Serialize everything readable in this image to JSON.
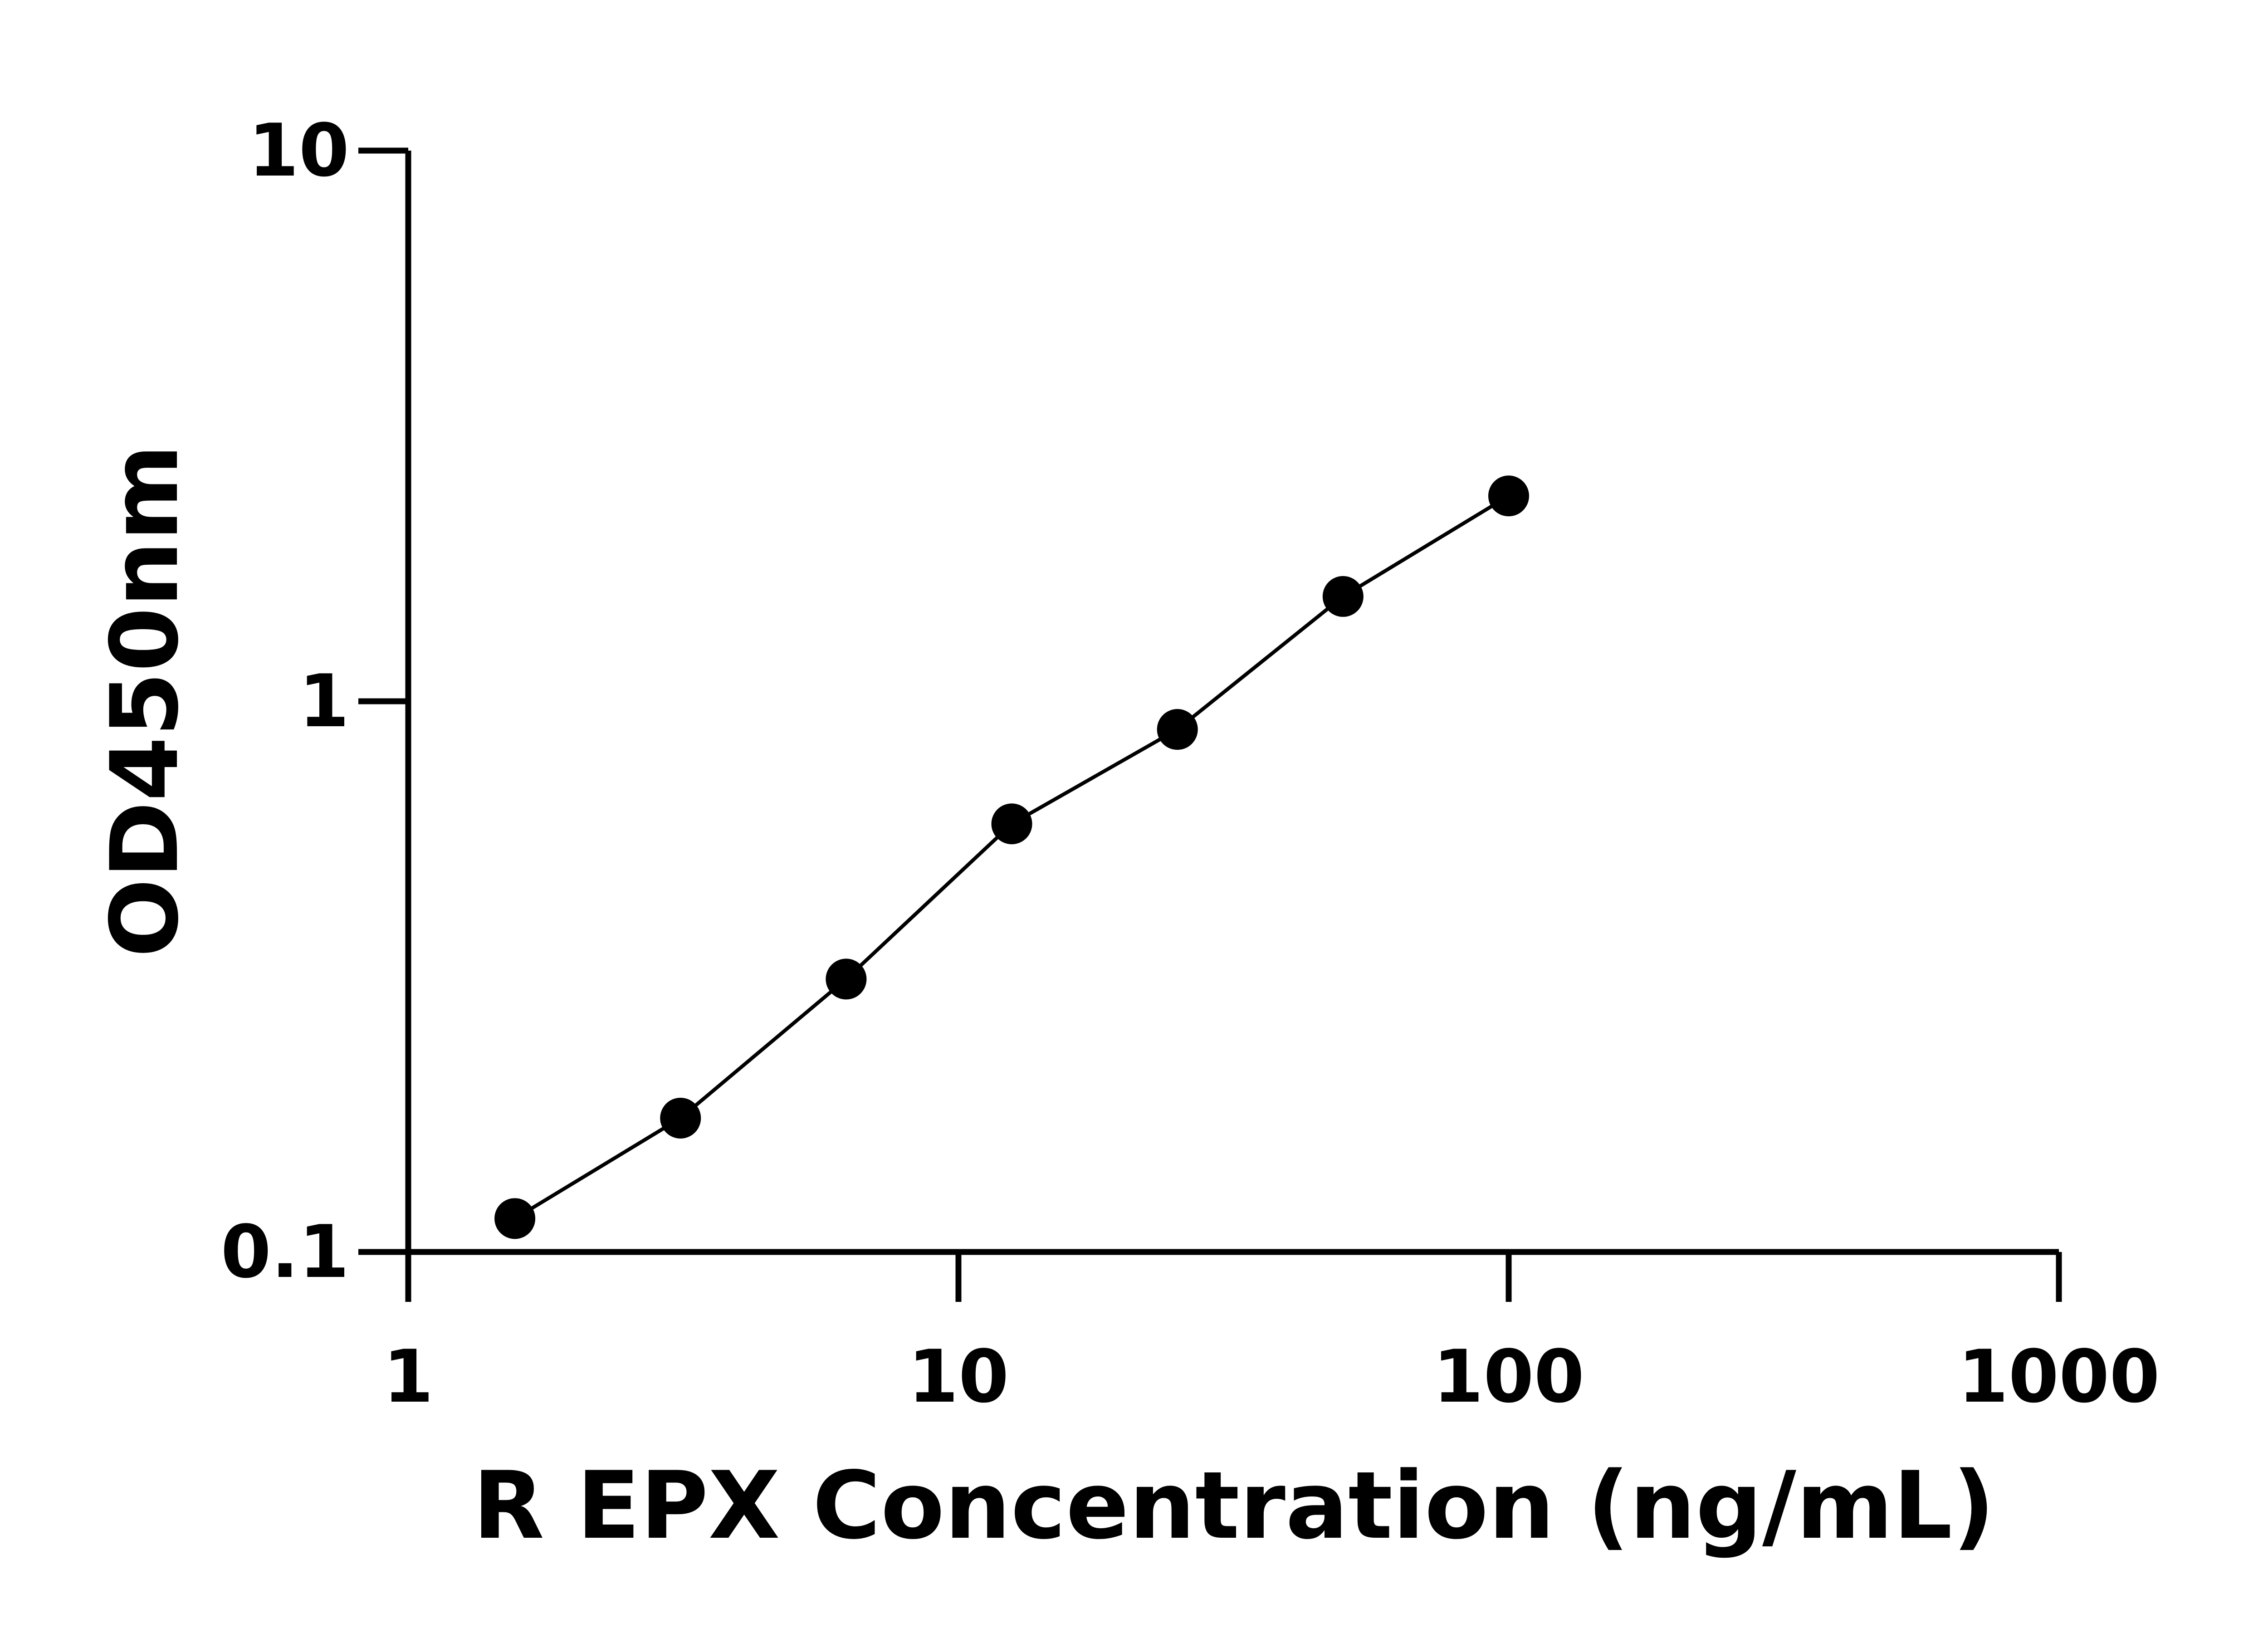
{
  "chart_data": {
    "type": "scatter",
    "title": "",
    "xlabel": "R EPX Concentration (ng/mL)",
    "ylabel": "OD450nm",
    "x_scale": "log",
    "y_scale": "log",
    "xlim": [
      1,
      1000
    ],
    "ylim": [
      0.1,
      10
    ],
    "x_ticks": [
      "1",
      "10",
      "100",
      "1000"
    ],
    "y_ticks": [
      "0.1",
      "1",
      "10"
    ],
    "grid": false,
    "legend": "none",
    "connect_line": true,
    "color": "#000000",
    "series": [
      {
        "x": [
          1.5625,
          3.125,
          6.25,
          12.5,
          25,
          50,
          100
        ],
        "y": [
          0.115,
          0.175,
          0.313,
          0.599,
          0.889,
          1.55,
          2.36
        ]
      }
    ]
  }
}
